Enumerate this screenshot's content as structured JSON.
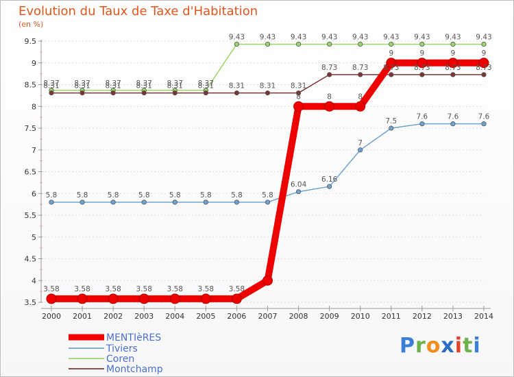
{
  "title": "Evolution du Taux de Taxe d'Habitation",
  "unit_label": "(en %)",
  "logo": {
    "text": "Proxiti",
    "letters": [
      "P",
      "r",
      "o",
      "x",
      "i",
      "t",
      "i"
    ],
    "colors": [
      "#3b7fd6",
      "#6bb34a",
      "#f28c1c",
      "#2b6cc4",
      "#e0412b",
      "#6bb34a",
      "#3b7fd6"
    ]
  },
  "chart_data": {
    "type": "line",
    "title": "Evolution du Taux de Taxe d'Habitation",
    "ylabel": "(en %)",
    "xlabel": "",
    "ylim": [
      3.5,
      9.5
    ],
    "yticks": [
      "3.5",
      "4",
      "4.5",
      "5",
      "5.5",
      "6",
      "6.5",
      "7",
      "7.5",
      "8",
      "8.5",
      "9",
      "9.5"
    ],
    "x": [
      "2000",
      "2001",
      "2002",
      "2003",
      "2004",
      "2005",
      "2006",
      "2007",
      "2008",
      "2009",
      "2010",
      "2011",
      "2012",
      "2013",
      "2014"
    ],
    "series": [
      {
        "name": "MENTIèRES",
        "color": "#ee0000",
        "values": [
          3.58,
          3.58,
          3.58,
          3.58,
          3.58,
          3.58,
          3.58,
          4.0,
          8.0,
          8.0,
          8.0,
          9.0,
          9.0,
          9.0,
          9.0
        ],
        "labels": [
          "3.58",
          "3.58",
          "3.58",
          "3.58",
          "3.58",
          "3.58",
          "3.58",
          "",
          "8",
          "8",
          "8",
          "9",
          "9",
          "9",
          "9"
        ]
      },
      {
        "name": "Tiviers",
        "color": "#6fa3cf",
        "values": [
          5.8,
          5.8,
          5.8,
          5.8,
          5.8,
          5.8,
          5.8,
          5.8,
          6.04,
          6.16,
          7.0,
          7.5,
          7.6,
          7.6,
          7.6
        ],
        "labels": [
          "5.8",
          "5.8",
          "5.8",
          "5.8",
          "5.8",
          "5.8",
          "5.8",
          "5.8",
          "6.04",
          "6.16",
          "7",
          "7.5",
          "7.6",
          "7.6",
          "7.6"
        ]
      },
      {
        "name": "Coren",
        "color": "#9ad76a",
        "values": [
          8.37,
          8.37,
          8.37,
          8.37,
          8.37,
          8.37,
          9.43,
          9.43,
          9.43,
          9.43,
          9.43,
          9.43,
          9.43,
          9.43,
          9.43
        ],
        "labels": [
          "8.37",
          "8.37",
          "8.37",
          "8.37",
          "8.37",
          "8.37",
          "9.43",
          "9.43",
          "9.43",
          "9.43",
          "9.43",
          "9.43",
          "9.43",
          "9.43",
          "9.43"
        ]
      },
      {
        "name": "Montchamp",
        "color": "#7a3535",
        "values": [
          8.31,
          8.31,
          8.31,
          8.31,
          8.31,
          8.31,
          8.31,
          8.31,
          8.31,
          8.73,
          8.73,
          8.73,
          8.73,
          8.73,
          8.73
        ],
        "labels": [
          "8.31",
          "8.31",
          "8.31",
          "8.31",
          "8.31",
          "8.31",
          "8.31",
          "8.31",
          "8.31",
          "8.73",
          "8.73",
          "8.73",
          "8.73",
          "8.73",
          "8.73"
        ]
      }
    ]
  }
}
